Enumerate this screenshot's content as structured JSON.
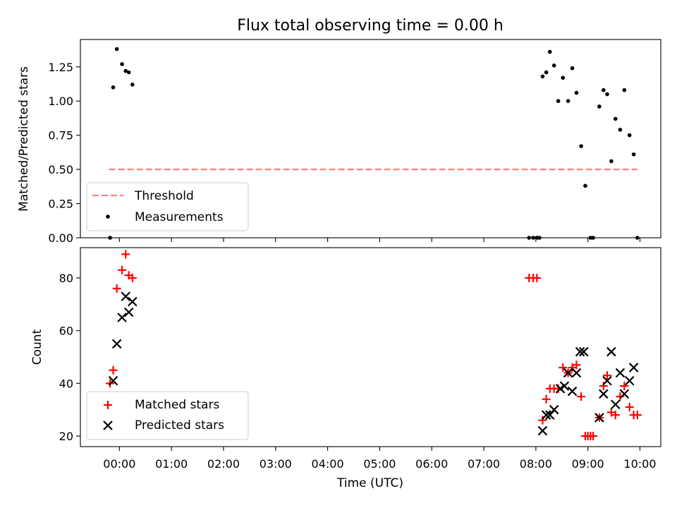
{
  "chart_data": [
    {
      "type": "scatter",
      "title": "Flux total observing time = 0.00 h",
      "ylabel": "Matched/Predicted stars",
      "xlabel": "",
      "xlim": [
        -0.75,
        10.4
      ],
      "ylim": [
        0,
        1.45
      ],
      "yticks": [
        0,
        0.25,
        0.5,
        0.75,
        1.0,
        1.25
      ],
      "ytick_labels": [
        "0.00",
        "0.25",
        "0.50",
        "0.75",
        "1.00",
        "1.25"
      ],
      "threshold": {
        "name": "Threshold",
        "value": 0.5,
        "x_start": -0.2,
        "x_end": 9.95,
        "color": "#ff7f7f"
      },
      "series": [
        {
          "name": "Measurements",
          "color": "#000000",
          "x": [
            -0.18,
            -0.12,
            -0.05,
            0.05,
            0.12,
            0.18,
            0.25,
            7.87,
            7.95,
            8.02,
            8.07,
            8.13,
            8.2,
            8.27,
            8.35,
            8.43,
            8.52,
            8.62,
            8.7,
            8.78,
            8.87,
            8.95,
            9.05,
            9.1,
            9.22,
            9.3,
            9.37,
            9.45,
            9.53,
            9.62,
            9.7,
            9.8,
            9.88,
            9.95
          ],
          "y": [
            0.0,
            1.1,
            1.38,
            1.27,
            1.22,
            1.21,
            1.12,
            0.0,
            0.0,
            0.0,
            0.0,
            1.18,
            1.21,
            1.36,
            1.26,
            1.0,
            1.17,
            1.0,
            1.24,
            1.06,
            0.67,
            0.38,
            0.0,
            0.0,
            0.96,
            1.08,
            1.05,
            0.56,
            0.87,
            0.79,
            1.08,
            0.75,
            0.61,
            0.0
          ]
        }
      ],
      "legend": {
        "location": "lower-left",
        "entries": [
          "Threshold",
          "Measurements"
        ]
      }
    },
    {
      "type": "scatter",
      "title": "",
      "ylabel": "Count",
      "xlabel": "Time (UTC)",
      "xlim": [
        -0.75,
        10.4
      ],
      "ylim": [
        16,
        91.5
      ],
      "yticks": [
        20,
        40,
        60,
        80
      ],
      "ytick_labels": [
        "20",
        "40",
        "60",
        "80"
      ],
      "xticks": [
        0,
        1,
        2,
        3,
        4,
        5,
        6,
        7,
        8,
        9,
        10
      ],
      "xtick_labels": [
        "00:00",
        "01:00",
        "02:00",
        "03:00",
        "04:00",
        "05:00",
        "06:00",
        "07:00",
        "08:00",
        "09:00",
        "10:00"
      ],
      "series": [
        {
          "name": "Matched stars",
          "marker": "plus",
          "color": "#ff0000",
          "x": [
            -0.18,
            -0.12,
            -0.05,
            0.05,
            0.12,
            0.18,
            0.25,
            7.87,
            7.95,
            8.02,
            8.13,
            8.2,
            8.27,
            8.35,
            8.43,
            8.52,
            8.62,
            8.7,
            8.78,
            8.87,
            8.95,
            9.0,
            9.05,
            9.1,
            9.22,
            9.3,
            9.37,
            9.45,
            9.53,
            9.62,
            9.7,
            9.8,
            9.88,
            9.95
          ],
          "y": [
            40,
            45,
            76,
            83,
            89,
            81,
            80,
            80,
            80,
            80,
            26,
            34,
            38,
            38,
            38,
            46,
            44,
            46,
            47,
            35,
            20,
            20,
            20,
            20,
            27,
            39,
            43,
            29,
            28,
            35,
            39,
            31,
            28,
            28
          ]
        },
        {
          "name": "Predicted stars",
          "marker": "x",
          "color": "#000000",
          "x": [
            -0.12,
            -0.05,
            0.05,
            0.12,
            0.18,
            0.25,
            8.13,
            8.2,
            8.27,
            8.35,
            8.47,
            8.55,
            8.62,
            8.7,
            8.78,
            8.85,
            8.92,
            9.22,
            9.3,
            9.37,
            9.45,
            9.53,
            9.62,
            9.7,
            9.8,
            9.88
          ],
          "y": [
            41,
            55,
            65,
            73,
            67,
            71,
            22,
            28,
            28,
            30,
            38,
            39,
            44,
            37,
            44,
            52,
            52,
            27,
            36,
            41,
            52,
            32,
            44,
            36,
            41,
            46
          ]
        }
      ],
      "legend": {
        "location": "lower-left",
        "entries": [
          "Matched stars",
          "Predicted stars"
        ]
      }
    }
  ]
}
